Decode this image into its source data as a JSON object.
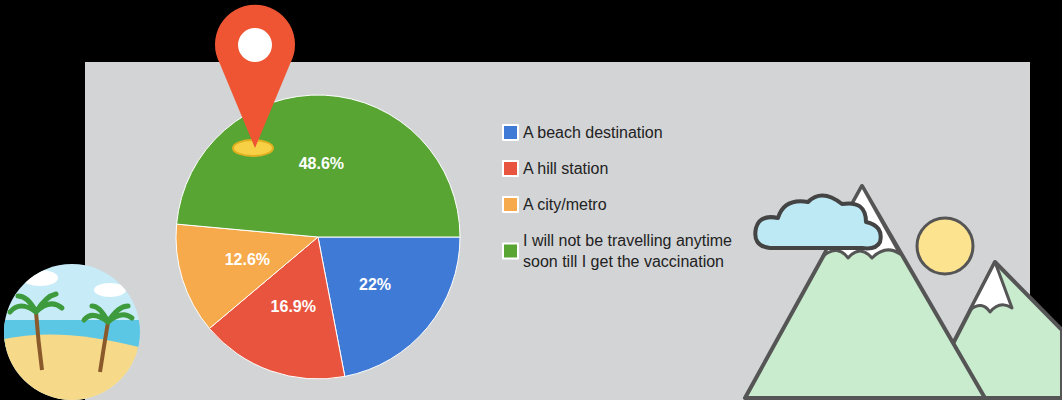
{
  "chart_data": {
    "type": "pie",
    "categories": [
      "A beach destination",
      "A hill station",
      "A city/metro",
      "I will not be travelling anytime soon till I get the vaccination"
    ],
    "values": [
      22,
      16.9,
      12.6,
      48.6
    ],
    "value_labels": [
      "22%",
      "16.9%",
      "12.6%",
      "48.6%"
    ],
    "colors": [
      "#3f7bd6",
      "#e9543e",
      "#f6aa4b",
      "#58a534"
    ],
    "data_labels": true,
    "legend": "right"
  }
}
